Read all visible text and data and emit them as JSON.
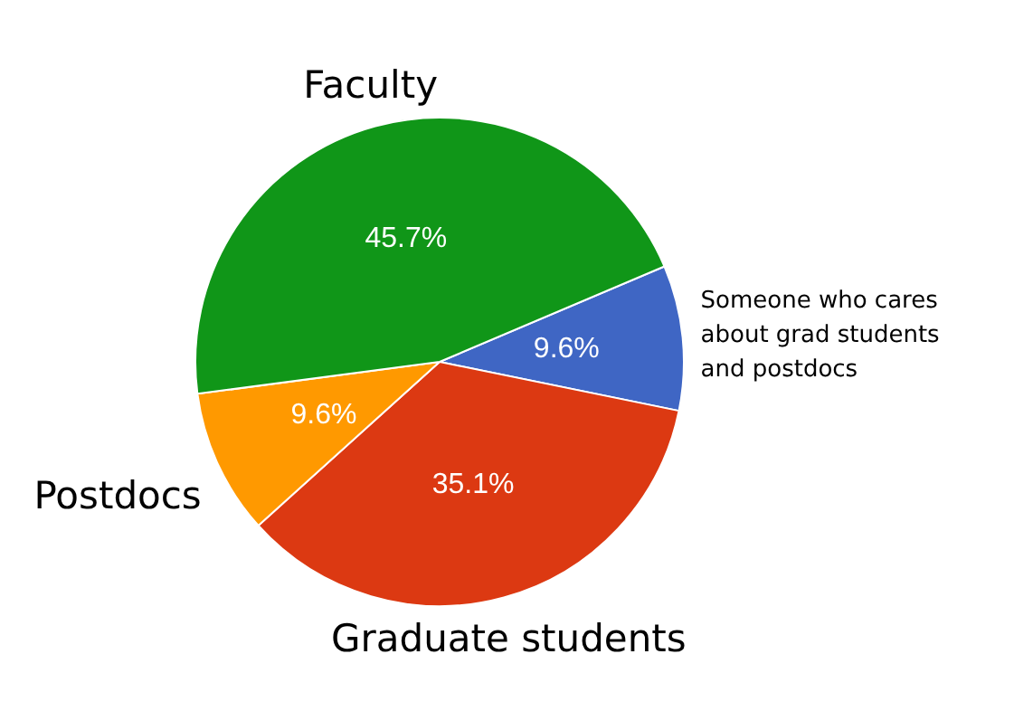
{
  "chart_data": {
    "type": "pie",
    "categories": [
      "Someone who cares about grad students and postdocs",
      "Graduate students",
      "Postdocs",
      "Faculty"
    ],
    "values": [
      9.6,
      35.1,
      9.6,
      45.7
    ],
    "value_labels": [
      "9.6%",
      "35.1%",
      "9.6%",
      "45.7%"
    ],
    "colors": [
      "#3f66c4",
      "#dc3912",
      "#ff9900",
      "#109618"
    ]
  }
}
